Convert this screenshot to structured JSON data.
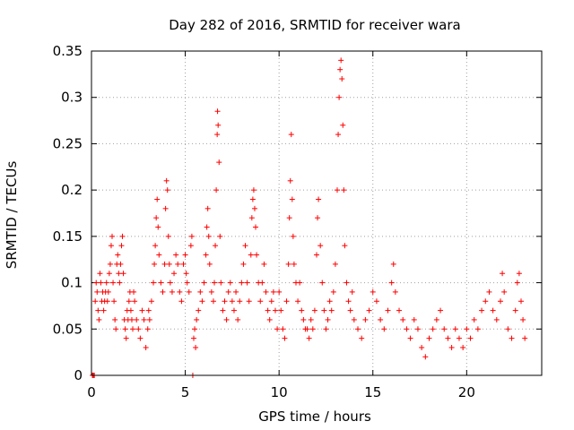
{
  "chart_data": {
    "type": "scatter",
    "title": "Day 282 of 2016, SRMTID for receiver wara",
    "xlabel": "GPS time / hours",
    "ylabel": "SRMTID / TECUs",
    "xlim": [
      0,
      24
    ],
    "ylim": [
      0,
      0.35
    ],
    "xticks": [
      0,
      5,
      10,
      15,
      20
    ],
    "xtick_labels": [
      "0",
      "5",
      "10",
      "15",
      "20"
    ],
    "yticks": [
      0,
      0.05,
      0.1,
      0.15,
      0.2,
      0.25,
      0.3,
      0.35
    ],
    "ytick_labels": [
      "0",
      "0.05",
      "0.1",
      "0.15",
      "0.2",
      "0.25",
      "0.3",
      "0.35"
    ],
    "grid": true,
    "marker": "+",
    "series": [
      {
        "name": "SRMTID",
        "color": "#ff0000",
        "points": [
          [
            0.05,
            0.0
          ],
          [
            0.1,
            0.0
          ],
          [
            0.15,
            0.0
          ],
          [
            0.2,
            0.08
          ],
          [
            0.25,
            0.1
          ],
          [
            0.3,
            0.09
          ],
          [
            0.35,
            0.07
          ],
          [
            0.4,
            0.06
          ],
          [
            0.45,
            0.11
          ],
          [
            0.5,
            0.1
          ],
          [
            0.55,
            0.08
          ],
          [
            0.6,
            0.09
          ],
          [
            0.65,
            0.07
          ],
          [
            0.7,
            0.08
          ],
          [
            0.75,
            0.09
          ],
          [
            0.8,
            0.1
          ],
          [
            0.85,
            0.08
          ],
          [
            0.9,
            0.09
          ],
          [
            0.95,
            0.11
          ],
          [
            1.0,
            0.12
          ],
          [
            1.05,
            0.14
          ],
          [
            1.1,
            0.15
          ],
          [
            1.15,
            0.1
          ],
          [
            1.2,
            0.08
          ],
          [
            1.25,
            0.06
          ],
          [
            1.3,
            0.05
          ],
          [
            1.35,
            0.12
          ],
          [
            1.4,
            0.13
          ],
          [
            1.45,
            0.11
          ],
          [
            1.5,
            0.1
          ],
          [
            1.55,
            0.12
          ],
          [
            1.6,
            0.14
          ],
          [
            1.65,
            0.15
          ],
          [
            1.7,
            0.11
          ],
          [
            1.75,
            0.06
          ],
          [
            1.8,
            0.05
          ],
          [
            1.85,
            0.04
          ],
          [
            1.9,
            0.07
          ],
          [
            1.95,
            0.06
          ],
          [
            2.0,
            0.08
          ],
          [
            2.05,
            0.09
          ],
          [
            2.1,
            0.07
          ],
          [
            2.15,
            0.06
          ],
          [
            2.2,
            0.05
          ],
          [
            2.25,
            0.09
          ],
          [
            2.3,
            0.08
          ],
          [
            2.4,
            0.06
          ],
          [
            2.5,
            0.05
          ],
          [
            2.6,
            0.04
          ],
          [
            2.7,
            0.07
          ],
          [
            2.8,
            0.06
          ],
          [
            2.9,
            0.03
          ],
          [
            3.0,
            0.05
          ],
          [
            3.05,
            0.07
          ],
          [
            3.1,
            0.06
          ],
          [
            3.2,
            0.08
          ],
          [
            3.3,
            0.1
          ],
          [
            3.35,
            0.12
          ],
          [
            3.4,
            0.14
          ],
          [
            3.45,
            0.17
          ],
          [
            3.5,
            0.19
          ],
          [
            3.55,
            0.16
          ],
          [
            3.6,
            0.13
          ],
          [
            3.7,
            0.1
          ],
          [
            3.8,
            0.09
          ],
          [
            3.9,
            0.12
          ],
          [
            3.95,
            0.18
          ],
          [
            4.0,
            0.21
          ],
          [
            4.05,
            0.2
          ],
          [
            4.1,
            0.15
          ],
          [
            4.15,
            0.12
          ],
          [
            4.2,
            0.1
          ],
          [
            4.3,
            0.09
          ],
          [
            4.4,
            0.11
          ],
          [
            4.5,
            0.13
          ],
          [
            4.6,
            0.12
          ],
          [
            4.7,
            0.09
          ],
          [
            4.8,
            0.08
          ],
          [
            4.9,
            0.12
          ],
          [
            5.0,
            0.13
          ],
          [
            5.05,
            0.11
          ],
          [
            5.1,
            0.1
          ],
          [
            5.2,
            0.09
          ],
          [
            5.3,
            0.14
          ],
          [
            5.35,
            0.15
          ],
          [
            5.4,
            0.0
          ],
          [
            5.45,
            0.04
          ],
          [
            5.5,
            0.05
          ],
          [
            5.55,
            0.03
          ],
          [
            5.6,
            0.06
          ],
          [
            5.7,
            0.07
          ],
          [
            5.8,
            0.09
          ],
          [
            5.9,
            0.08
          ],
          [
            6.0,
            0.1
          ],
          [
            6.1,
            0.13
          ],
          [
            6.15,
            0.16
          ],
          [
            6.2,
            0.18
          ],
          [
            6.25,
            0.15
          ],
          [
            6.3,
            0.12
          ],
          [
            6.4,
            0.09
          ],
          [
            6.5,
            0.08
          ],
          [
            6.55,
            0.1
          ],
          [
            6.6,
            0.14
          ],
          [
            6.65,
            0.2
          ],
          [
            6.7,
            0.26
          ],
          [
            6.72,
            0.285
          ],
          [
            6.75,
            0.27
          ],
          [
            6.8,
            0.23
          ],
          [
            6.85,
            0.15
          ],
          [
            6.9,
            0.1
          ],
          [
            7.0,
            0.07
          ],
          [
            7.1,
            0.08
          ],
          [
            7.2,
            0.06
          ],
          [
            7.3,
            0.09
          ],
          [
            7.4,
            0.1
          ],
          [
            7.5,
            0.08
          ],
          [
            7.6,
            0.07
          ],
          [
            7.7,
            0.09
          ],
          [
            7.8,
            0.06
          ],
          [
            7.9,
            0.08
          ],
          [
            8.0,
            0.1
          ],
          [
            8.1,
            0.12
          ],
          [
            8.2,
            0.14
          ],
          [
            8.3,
            0.1
          ],
          [
            8.4,
            0.08
          ],
          [
            8.5,
            0.13
          ],
          [
            8.55,
            0.17
          ],
          [
            8.6,
            0.19
          ],
          [
            8.65,
            0.2
          ],
          [
            8.7,
            0.18
          ],
          [
            8.75,
            0.16
          ],
          [
            8.8,
            0.13
          ],
          [
            8.9,
            0.1
          ],
          [
            9.0,
            0.08
          ],
          [
            9.1,
            0.1
          ],
          [
            9.2,
            0.12
          ],
          [
            9.3,
            0.09
          ],
          [
            9.4,
            0.07
          ],
          [
            9.5,
            0.06
          ],
          [
            9.6,
            0.08
          ],
          [
            9.7,
            0.09
          ],
          [
            9.8,
            0.07
          ],
          [
            9.9,
            0.05
          ],
          [
            10.0,
            0.09
          ],
          [
            10.1,
            0.07
          ],
          [
            10.2,
            0.05
          ],
          [
            10.3,
            0.04
          ],
          [
            10.4,
            0.08
          ],
          [
            10.5,
            0.12
          ],
          [
            10.55,
            0.17
          ],
          [
            10.6,
            0.21
          ],
          [
            10.65,
            0.26
          ],
          [
            10.7,
            0.19
          ],
          [
            10.75,
            0.15
          ],
          [
            10.8,
            0.12
          ],
          [
            10.9,
            0.1
          ],
          [
            11.0,
            0.08
          ],
          [
            11.1,
            0.1
          ],
          [
            11.2,
            0.07
          ],
          [
            11.3,
            0.06
          ],
          [
            11.4,
            0.05
          ],
          [
            11.5,
            0.05
          ],
          [
            11.6,
            0.04
          ],
          [
            11.7,
            0.06
          ],
          [
            11.8,
            0.05
          ],
          [
            11.9,
            0.07
          ],
          [
            12.0,
            0.13
          ],
          [
            12.05,
            0.17
          ],
          [
            12.1,
            0.19
          ],
          [
            12.2,
            0.14
          ],
          [
            12.3,
            0.1
          ],
          [
            12.4,
            0.07
          ],
          [
            12.5,
            0.05
          ],
          [
            12.6,
            0.06
          ],
          [
            12.7,
            0.08
          ],
          [
            12.8,
            0.07
          ],
          [
            12.9,
            0.09
          ],
          [
            13.0,
            0.12
          ],
          [
            13.1,
            0.2
          ],
          [
            13.15,
            0.26
          ],
          [
            13.2,
            0.3
          ],
          [
            13.25,
            0.33
          ],
          [
            13.3,
            0.34
          ],
          [
            13.35,
            0.32
          ],
          [
            13.4,
            0.27
          ],
          [
            13.45,
            0.2
          ],
          [
            13.5,
            0.14
          ],
          [
            13.6,
            0.1
          ],
          [
            13.7,
            0.08
          ],
          [
            13.8,
            0.07
          ],
          [
            13.9,
            0.09
          ],
          [
            14.0,
            0.06
          ],
          [
            14.2,
            0.05
          ],
          [
            14.4,
            0.04
          ],
          [
            14.6,
            0.06
          ],
          [
            14.8,
            0.07
          ],
          [
            15.0,
            0.09
          ],
          [
            15.2,
            0.08
          ],
          [
            15.4,
            0.06
          ],
          [
            15.6,
            0.05
          ],
          [
            15.8,
            0.07
          ],
          [
            16.0,
            0.1
          ],
          [
            16.1,
            0.12
          ],
          [
            16.2,
            0.09
          ],
          [
            16.4,
            0.07
          ],
          [
            16.6,
            0.06
          ],
          [
            16.8,
            0.05
          ],
          [
            17.0,
            0.04
          ],
          [
            17.2,
            0.06
          ],
          [
            17.4,
            0.05
          ],
          [
            17.6,
            0.03
          ],
          [
            17.8,
            0.02
          ],
          [
            18.0,
            0.04
          ],
          [
            18.2,
            0.05
          ],
          [
            18.4,
            0.06
          ],
          [
            18.6,
            0.07
          ],
          [
            18.8,
            0.05
          ],
          [
            19.0,
            0.04
          ],
          [
            19.2,
            0.03
          ],
          [
            19.4,
            0.05
          ],
          [
            19.6,
            0.04
          ],
          [
            19.8,
            0.03
          ],
          [
            20.0,
            0.05
          ],
          [
            20.2,
            0.04
          ],
          [
            20.4,
            0.06
          ],
          [
            20.6,
            0.05
          ],
          [
            20.8,
            0.07
          ],
          [
            21.0,
            0.08
          ],
          [
            21.2,
            0.09
          ],
          [
            21.4,
            0.07
          ],
          [
            21.6,
            0.06
          ],
          [
            21.8,
            0.08
          ],
          [
            21.9,
            0.11
          ],
          [
            22.0,
            0.09
          ],
          [
            22.2,
            0.05
          ],
          [
            22.4,
            0.04
          ],
          [
            22.6,
            0.07
          ],
          [
            22.7,
            0.1
          ],
          [
            22.8,
            0.11
          ],
          [
            22.9,
            0.08
          ],
          [
            23.0,
            0.06
          ],
          [
            23.1,
            0.04
          ]
        ]
      }
    ]
  }
}
